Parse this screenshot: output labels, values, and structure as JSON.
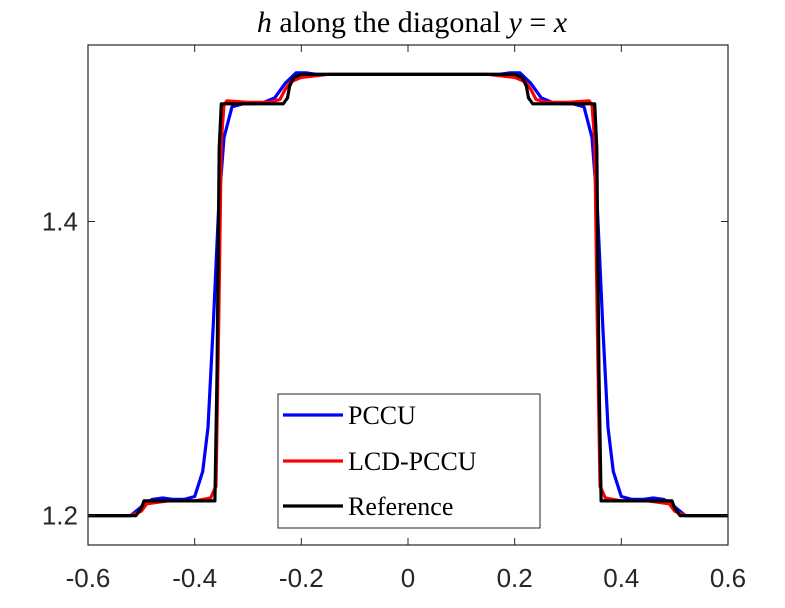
{
  "chart_data": {
    "type": "line",
    "title_parts": [
      {
        "text": "h",
        "italic": true
      },
      {
        "text": " along the diagonal ",
        "italic": false
      },
      {
        "text": "y",
        "italic": true
      },
      {
        "text": " = ",
        "italic": false
      },
      {
        "text": "x",
        "italic": true
      }
    ],
    "xlabel": "",
    "ylabel": "",
    "xlim": [
      -0.6,
      0.6
    ],
    "ylim": [
      1.18,
      1.52
    ],
    "xticks": [
      -0.6,
      -0.4,
      -0.2,
      0,
      0.2,
      0.4,
      0.6
    ],
    "xtick_labels": [
      "-0.6",
      "-0.4",
      "-0.2",
      "0",
      "0.2",
      "0.4",
      "0.6"
    ],
    "yticks": [
      1.2,
      1.4
    ],
    "ytick_labels": [
      "1.2",
      "1.4"
    ],
    "grid": false,
    "legend_position": "lower-center",
    "series": [
      {
        "name": "PCCU",
        "color": "#0000ff",
        "x": [
          -0.6,
          -0.55,
          -0.52,
          -0.5,
          -0.48,
          -0.46,
          -0.44,
          -0.42,
          -0.4,
          -0.385,
          -0.375,
          -0.365,
          -0.355,
          -0.345,
          -0.33,
          -0.31,
          -0.29,
          -0.27,
          -0.25,
          -0.23,
          -0.21,
          -0.19,
          -0.17,
          -0.15,
          0,
          0.15,
          0.17,
          0.19,
          0.21,
          0.23,
          0.25,
          0.27,
          0.29,
          0.31,
          0.33,
          0.345,
          0.355,
          0.365,
          0.375,
          0.385,
          0.4,
          0.42,
          0.44,
          0.46,
          0.48,
          0.5,
          0.52,
          0.55,
          0.6
        ],
        "y": [
          1.2,
          1.2,
          1.2,
          1.206,
          1.211,
          1.212,
          1.211,
          1.211,
          1.213,
          1.23,
          1.26,
          1.33,
          1.41,
          1.457,
          1.478,
          1.48,
          1.48,
          1.481,
          1.484,
          1.494,
          1.501,
          1.501,
          1.5,
          1.5,
          1.5,
          1.5,
          1.5,
          1.501,
          1.501,
          1.494,
          1.484,
          1.481,
          1.48,
          1.48,
          1.478,
          1.457,
          1.41,
          1.33,
          1.26,
          1.23,
          1.213,
          1.211,
          1.211,
          1.212,
          1.211,
          1.206,
          1.2,
          1.2,
          1.2
        ]
      },
      {
        "name": "LCD-PCCU",
        "color": "#ff0000",
        "x": [
          -0.6,
          -0.52,
          -0.5,
          -0.49,
          -0.45,
          -0.4,
          -0.37,
          -0.36,
          -0.355,
          -0.35,
          -0.345,
          -0.34,
          -0.3,
          -0.26,
          -0.24,
          -0.23,
          -0.22,
          -0.2,
          -0.15,
          0,
          0.15,
          0.2,
          0.22,
          0.23,
          0.24,
          0.26,
          0.3,
          0.34,
          0.345,
          0.35,
          0.355,
          0.36,
          0.37,
          0.4,
          0.45,
          0.49,
          0.5,
          0.52,
          0.6
        ],
        "y": [
          1.2,
          1.2,
          1.203,
          1.208,
          1.21,
          1.21,
          1.212,
          1.22,
          1.33,
          1.455,
          1.479,
          1.482,
          1.481,
          1.481,
          1.483,
          1.49,
          1.495,
          1.498,
          1.5,
          1.5,
          1.5,
          1.498,
          1.495,
          1.49,
          1.483,
          1.481,
          1.481,
          1.482,
          1.479,
          1.455,
          1.33,
          1.22,
          1.212,
          1.21,
          1.21,
          1.208,
          1.203,
          1.2,
          1.2
        ]
      },
      {
        "name": "Reference",
        "color": "#000000",
        "x": [
          -0.6,
          -0.51,
          -0.5,
          -0.495,
          -0.37,
          -0.362,
          -0.358,
          -0.354,
          -0.35,
          -0.234,
          -0.226,
          -0.222,
          -0.214,
          -0.2,
          0,
          0.2,
          0.214,
          0.222,
          0.226,
          0.234,
          0.35,
          0.354,
          0.358,
          0.362,
          0.37,
          0.495,
          0.5,
          0.51,
          0.6
        ],
        "y": [
          1.2,
          1.2,
          1.205,
          1.21,
          1.21,
          1.21,
          1.3,
          1.45,
          1.48,
          1.48,
          1.484,
          1.492,
          1.498,
          1.5,
          1.5,
          1.5,
          1.498,
          1.492,
          1.484,
          1.48,
          1.48,
          1.45,
          1.3,
          1.21,
          1.21,
          1.21,
          1.205,
          1.2,
          1.2
        ]
      }
    ]
  }
}
